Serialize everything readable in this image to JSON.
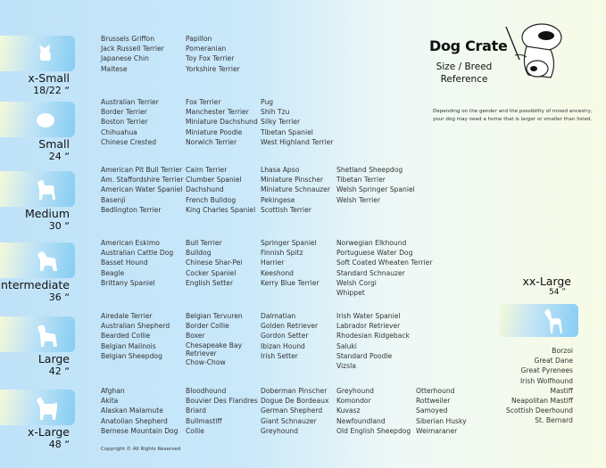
{
  "title": "Dog Crate",
  "subtitle_line1": "Size / Breed",
  "subtitle_line2": "Reference",
  "note_line1": "Depending on the gender and the possibility of mixed ancestry,",
  "note_line2": "your dog may need  a home that is larger or smaller than listed.",
  "copyright": "Copyright © All Rights Reserved",
  "colors": {
    "panel_blue": "#86cdf3",
    "panel_pale": "#f4f9d8"
  },
  "sizes": [
    {
      "name": "x-Small",
      "size": "18/22 ˮ",
      "icon": "papillon-silhouette-icon",
      "columns": [
        [
          "Brussels Griffon",
          "Jack Russell Terrier",
          "Japanese Chin",
          "Maltese"
        ],
        [
          "Papillon",
          "Pomeranian",
          "Toy Fox Terrier",
          "Yorkshire Terrier"
        ]
      ]
    },
    {
      "name": "Small",
      "size": "24 ˮ",
      "icon": "small-dog-silhouette-icon",
      "columns": [
        [
          "Australian Terrier",
          "Border Terrier",
          "Boston Terrier",
          "Chihuahua",
          "Chinese Crested"
        ],
        [
          "Fox Terrier",
          "Manchester Terrier",
          "Miniature Dachshund",
          "Miniature Poodle",
          "Norwich Terrier"
        ],
        [
          "Pug",
          "Shih Tzu",
          "Silky Terrier",
          "Tibetan Spaniel",
          "West Highland Terrier"
        ]
      ]
    },
    {
      "name": "Medium",
      "size": "30 ˮ",
      "icon": "terrier-silhouette-icon",
      "columns": [
        [
          "American Pit Bull Terrier",
          "Am. Staffordshire Terrier",
          "American Water Spaniel",
          "Basenji",
          "Bedlington Terrier"
        ],
        [
          "Cairn Terrier",
          "Clumber Spaniel",
          "Dachshund",
          "French Bulldog",
          "King Charles Spaniel"
        ],
        [
          "Lhasa Apso",
          "Miniature Pinscher",
          "Miniature Schnauzer",
          "Pekingese",
          "Scottish Terrier"
        ],
        [
          "Shetland Sheepdog",
          "Tibetan Terrier",
          "Welsh Springer Spaniel",
          "Welsh Terrier"
        ]
      ]
    },
    {
      "name": "Intermediate",
      "size": "36 ˮ",
      "icon": "spaniel-silhouette-icon",
      "columns": [
        [
          "American Eskimo",
          "Australian Cattle Dog",
          "Basset Hound",
          "Beagle",
          "Brittany Spaniel"
        ],
        [
          "Bull Terrier",
          "Bulldog",
          "Chinese Shar-Pei",
          "Cocker Spaniel",
          "English Setter"
        ],
        [
          "Springer Spaniel",
          "Finnish Spitz",
          "Harrier",
          "Keeshond",
          "Kerry Blue Terrier"
        ],
        [
          "Norwegian Elkhound",
          "Portuguese Water Dog",
          "Soft Coated Wheaten Terrier",
          "Standard Schnauzer",
          "Welsh Corgi",
          "Whippet"
        ]
      ]
    },
    {
      "name": "Large",
      "size": "42 ˮ",
      "icon": "retriever-silhouette-icon",
      "columns": [
        [
          "Airedale Terrier",
          "Australian Shepherd",
          "Bearded Collie",
          "Belgian Malinois",
          "Belgian Sheepdog"
        ],
        [
          "Belgian Tervuren",
          "Border Collie",
          "Boxer",
          "Chesapeake Bay Retriever",
          "Chow-Chow"
        ],
        [
          "Dalmatian",
          "Golden Retriever",
          "Gordon Setter",
          "Ibizan Hound",
          "Irish Setter"
        ],
        [
          "Irish Water Spaniel",
          "Labrador Retriever",
          "Rhodesian Ridgeback",
          "Saluki",
          "Standard Poodle",
          "Vizsla"
        ]
      ]
    },
    {
      "name": "x-Large",
      "size": "48 ˮ",
      "icon": "akita-silhouette-icon",
      "columns": [
        [
          "Afghan",
          "Akita",
          "Alaskan Malamute",
          "Anatolian Shepherd",
          "Bernese Mountain Dog"
        ],
        [
          "Bloodhound",
          "Bouvier Des Flandres",
          "Briard",
          "Bullmastiff",
          "Collie"
        ],
        [
          "Doberman Pinscher",
          "Dogue De Bordeaux",
          "German Shepherd",
          "Giant Schnauzer",
          "Greyhound"
        ],
        [
          "Greyhound",
          "Komondor",
          "Kuvasz",
          "Newfoundland",
          "Old English Sheepdog"
        ],
        [
          "Otterhound",
          "Rottweiler",
          "Samoyed",
          "Siberian Husky",
          "Weimaraner"
        ]
      ]
    }
  ],
  "xxlarge": {
    "name": "xx-Large",
    "size": "54 ˮ",
    "icon": "great-dane-silhouette-icon",
    "breeds": [
      "Borzoi",
      "Great Dane",
      "Great Pyrenees",
      "Irish Wolfhound",
      "Mastiff",
      "Neapolitan Mastiff",
      "Scottish Deerhound",
      "St. Bernard"
    ]
  }
}
